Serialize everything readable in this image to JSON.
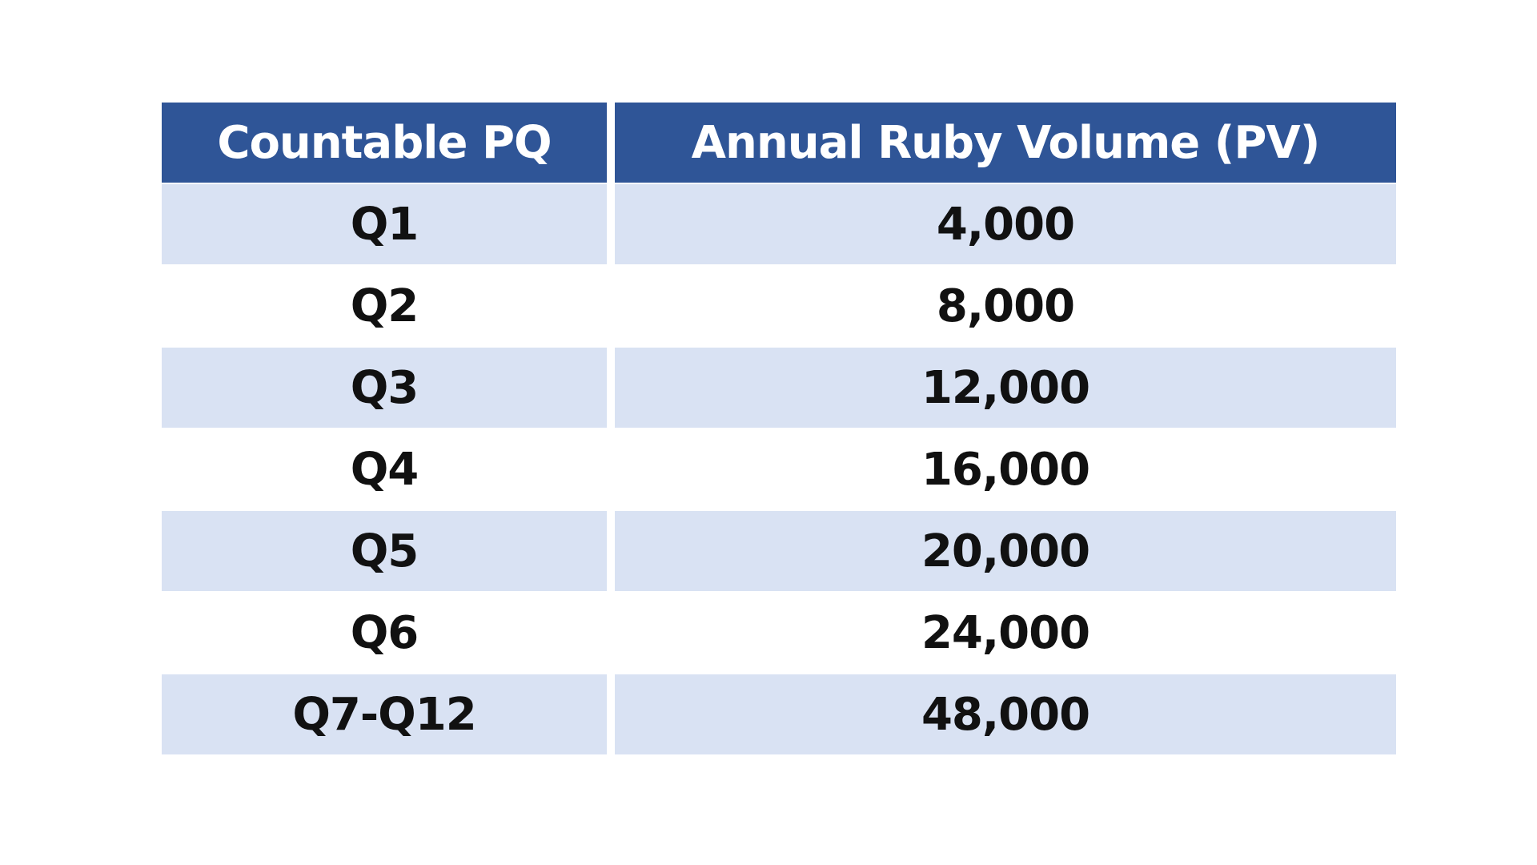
{
  "table": {
    "headers": [
      "Countable PQ",
      "Annual Ruby Volume (PV)"
    ],
    "rows": [
      [
        "Q1",
        "4,000"
      ],
      [
        "Q2",
        "8,000"
      ],
      [
        "Q3",
        "12,000"
      ],
      [
        "Q4",
        "16,000"
      ],
      [
        "Q5",
        "20,000"
      ],
      [
        "Q6",
        "24,000"
      ],
      [
        "Q7-Q12",
        "48,000"
      ]
    ]
  },
  "colors": {
    "header_bg": "#2f5597",
    "header_text": "#ffffff",
    "band_bg": "#d9e2f3",
    "text": "#111111"
  }
}
